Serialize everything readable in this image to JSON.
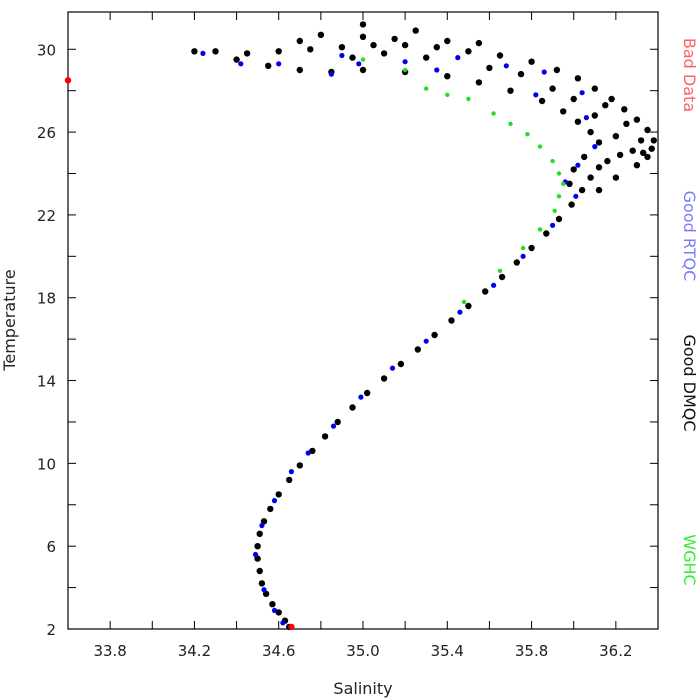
{
  "chart_data": {
    "type": "scatter",
    "xlabel": "Salinity",
    "ylabel": "Temperature",
    "xlim": [
      33.6,
      36.4
    ],
    "ylim": [
      2,
      31.8
    ],
    "x_ticks": [
      33.8,
      34.2,
      34.6,
      35.0,
      35.4,
      35.8,
      36.2
    ],
    "x_tick_labels": [
      "33.8",
      "34.2",
      "34.6",
      "35.0",
      "35.4",
      "35.8",
      "36.2"
    ],
    "y_ticks": [
      2,
      6,
      10,
      14,
      18,
      22,
      26,
      30
    ],
    "y_tick_labels": [
      "2",
      "6",
      "10",
      "14",
      "18",
      "22",
      "26",
      "30"
    ],
    "grid": false,
    "legend_placement": "right, vertical",
    "legend": [
      {
        "label": "Bad Data",
        "color": "#ff6060"
      },
      {
        "label": "Good RTQC",
        "color": "#7b7bff"
      },
      {
        "label": "Good DMQC",
        "color": "#111111"
      },
      {
        "label": "WGHC",
        "color": "#33ee33"
      }
    ],
    "series": [
      {
        "name": "Good DMQC",
        "color": "#000000",
        "points": [
          [
            34.65,
            2.1
          ],
          [
            34.63,
            2.4
          ],
          [
            34.6,
            2.8
          ],
          [
            34.57,
            3.2
          ],
          [
            34.54,
            3.7
          ],
          [
            34.52,
            4.2
          ],
          [
            34.51,
            4.8
          ],
          [
            34.5,
            5.4
          ],
          [
            34.5,
            6.0
          ],
          [
            34.51,
            6.6
          ],
          [
            34.53,
            7.2
          ],
          [
            34.56,
            7.8
          ],
          [
            34.6,
            8.5
          ],
          [
            34.65,
            9.2
          ],
          [
            34.7,
            9.9
          ],
          [
            34.76,
            10.6
          ],
          [
            34.82,
            11.3
          ],
          [
            34.88,
            12.0
          ],
          [
            34.95,
            12.7
          ],
          [
            35.02,
            13.4
          ],
          [
            35.1,
            14.1
          ],
          [
            35.18,
            14.8
          ],
          [
            35.26,
            15.5
          ],
          [
            35.34,
            16.2
          ],
          [
            35.42,
            16.9
          ],
          [
            35.5,
            17.6
          ],
          [
            35.58,
            18.3
          ],
          [
            35.66,
            19.0
          ],
          [
            35.73,
            19.7
          ],
          [
            35.8,
            20.4
          ],
          [
            35.87,
            21.1
          ],
          [
            35.93,
            21.8
          ],
          [
            35.99,
            22.5
          ],
          [
            36.04,
            23.2
          ],
          [
            36.08,
            23.8
          ],
          [
            36.12,
            24.3
          ],
          [
            36.16,
            24.6
          ],
          [
            36.22,
            24.9
          ],
          [
            36.28,
            25.1
          ],
          [
            36.33,
            25.0
          ],
          [
            36.37,
            25.2
          ],
          [
            36.38,
            25.6
          ],
          [
            36.35,
            26.1
          ],
          [
            36.3,
            26.6
          ],
          [
            36.24,
            27.1
          ],
          [
            36.18,
            27.6
          ],
          [
            36.1,
            28.1
          ],
          [
            36.02,
            28.6
          ],
          [
            35.92,
            29.0
          ],
          [
            35.8,
            29.4
          ],
          [
            35.65,
            29.7
          ],
          [
            35.5,
            29.9
          ],
          [
            35.35,
            30.1
          ],
          [
            35.2,
            30.2
          ],
          [
            35.05,
            30.2
          ],
          [
            34.9,
            30.1
          ],
          [
            34.75,
            30.0
          ],
          [
            34.6,
            29.9
          ],
          [
            34.45,
            29.8
          ],
          [
            34.3,
            29.9
          ],
          [
            34.2,
            29.9
          ],
          [
            34.4,
            29.5
          ],
          [
            34.55,
            29.2
          ],
          [
            34.7,
            29.0
          ],
          [
            34.85,
            28.9
          ],
          [
            35.0,
            29.0
          ],
          [
            35.2,
            28.9
          ],
          [
            35.4,
            28.7
          ],
          [
            35.55,
            28.4
          ],
          [
            35.7,
            28.0
          ],
          [
            35.85,
            27.5
          ],
          [
            35.95,
            27.0
          ],
          [
            36.02,
            26.5
          ],
          [
            36.08,
            26.0
          ],
          [
            36.12,
            25.5
          ],
          [
            36.05,
            24.8
          ],
          [
            36.0,
            24.2
          ],
          [
            35.98,
            23.5
          ],
          [
            36.1,
            26.8
          ],
          [
            36.2,
            25.8
          ],
          [
            36.25,
            26.4
          ],
          [
            36.15,
            27.3
          ],
          [
            35.9,
            28.1
          ],
          [
            35.75,
            28.8
          ],
          [
            35.6,
            29.1
          ],
          [
            35.3,
            29.6
          ],
          [
            35.1,
            29.8
          ],
          [
            34.95,
            29.6
          ],
          [
            34.7,
            30.4
          ],
          [
            35.0,
            30.6
          ],
          [
            35.15,
            30.5
          ],
          [
            35.4,
            30.4
          ],
          [
            35.55,
            30.3
          ],
          [
            35.0,
            31.2
          ],
          [
            34.8,
            30.7
          ],
          [
            35.25,
            30.9
          ],
          [
            36.3,
            24.4
          ],
          [
            36.35,
            24.8
          ],
          [
            36.2,
            23.8
          ],
          [
            36.12,
            23.2
          ],
          [
            36.32,
            25.6
          ],
          [
            36.0,
            27.6
          ]
        ]
      },
      {
        "name": "Good RTQC",
        "color": "#0000ee",
        "points": [
          [
            34.62,
            2.3
          ],
          [
            34.58,
            2.9
          ],
          [
            34.53,
            3.9
          ],
          [
            34.49,
            5.6
          ],
          [
            34.52,
            7.0
          ],
          [
            34.58,
            8.2
          ],
          [
            34.66,
            9.6
          ],
          [
            34.74,
            10.5
          ],
          [
            34.86,
            11.8
          ],
          [
            34.99,
            13.2
          ],
          [
            35.14,
            14.6
          ],
          [
            35.3,
            15.9
          ],
          [
            35.46,
            17.3
          ],
          [
            35.62,
            18.6
          ],
          [
            35.76,
            20.0
          ],
          [
            35.9,
            21.5
          ],
          [
            36.01,
            22.9
          ],
          [
            35.96,
            23.6
          ],
          [
            36.02,
            24.4
          ],
          [
            36.1,
            25.3
          ],
          [
            36.04,
            27.9
          ],
          [
            35.86,
            28.9
          ],
          [
            35.68,
            29.2
          ],
          [
            35.45,
            29.6
          ],
          [
            35.2,
            29.4
          ],
          [
            34.98,
            29.3
          ],
          [
            34.85,
            28.8
          ],
          [
            34.6,
            29.3
          ],
          [
            34.42,
            29.3
          ],
          [
            34.24,
            29.8
          ],
          [
            34.9,
            29.7
          ],
          [
            35.35,
            29.0
          ],
          [
            35.82,
            27.8
          ],
          [
            36.06,
            26.7
          ]
        ]
      },
      {
        "name": "WGHC",
        "color": "#22dd22",
        "points": [
          [
            35.0,
            29.5
          ],
          [
            35.2,
            29.0
          ],
          [
            35.3,
            28.1
          ],
          [
            35.4,
            27.8
          ],
          [
            35.5,
            27.6
          ],
          [
            35.62,
            26.9
          ],
          [
            35.7,
            26.4
          ],
          [
            35.78,
            25.9
          ],
          [
            35.84,
            25.3
          ],
          [
            35.9,
            24.6
          ],
          [
            35.93,
            24.0
          ],
          [
            35.95,
            23.5
          ],
          [
            35.93,
            22.9
          ],
          [
            35.91,
            22.2
          ],
          [
            35.84,
            21.3
          ],
          [
            35.76,
            20.4
          ],
          [
            35.65,
            19.3
          ],
          [
            35.48,
            17.8
          ]
        ]
      },
      {
        "name": "Bad Data",
        "color": "#ff0000",
        "points": [
          [
            34.66,
            2.1
          ],
          [
            33.6,
            28.5
          ]
        ]
      }
    ]
  }
}
